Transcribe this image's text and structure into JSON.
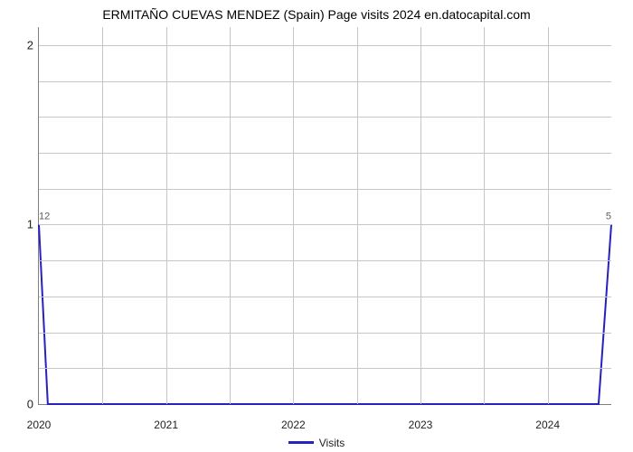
{
  "chart": {
    "type": "line",
    "title": "ERMITAÑO CUEVAS MENDEZ (Spain) Page visits 2024 en.datocapital.com",
    "title_fontsize": 14,
    "title_color": "#000000",
    "background_color": "#ffffff",
    "plot_border_color": "#7f7f7f",
    "grid_color": "#c6c6c6",
    "axis_label_color": "#222222",
    "x": {
      "min": 2020,
      "max": 2024.5,
      "tick_labels": [
        "2020",
        "2021",
        "2022",
        "2023",
        "2024"
      ],
      "tick_positions": [
        2020,
        2021,
        2022,
        2023,
        2024
      ],
      "minor_grid_positions": [
        2020.5,
        2021.5,
        2022.5,
        2023.5
      ],
      "label_fontsize": 12
    },
    "y": {
      "min": 0,
      "max": 2.1,
      "tick_labels": [
        "0",
        "1",
        "2"
      ],
      "tick_positions": [
        0,
        1,
        2
      ],
      "minor_grid_count_per_interval": 5,
      "label_fontsize": 13
    },
    "series": {
      "name": "Visits",
      "color": "#2721bd",
      "line_width": 2,
      "points_x": [
        2020,
        2020.07,
        2024.4,
        2024.5
      ],
      "points_y": [
        1.0,
        0.0,
        0.0,
        1.0
      ]
    },
    "data_labels": [
      {
        "x": 2020,
        "y": 1.0,
        "text": "12",
        "color": "#5c5c5c",
        "fontsize": 11
      },
      {
        "x": 2024.5,
        "y": 1.0,
        "text": "5",
        "color": "#5c5c5c",
        "fontsize": 11
      }
    ],
    "legend": {
      "label": "Visits",
      "color": "#2721bd",
      "fontsize": 12
    }
  }
}
